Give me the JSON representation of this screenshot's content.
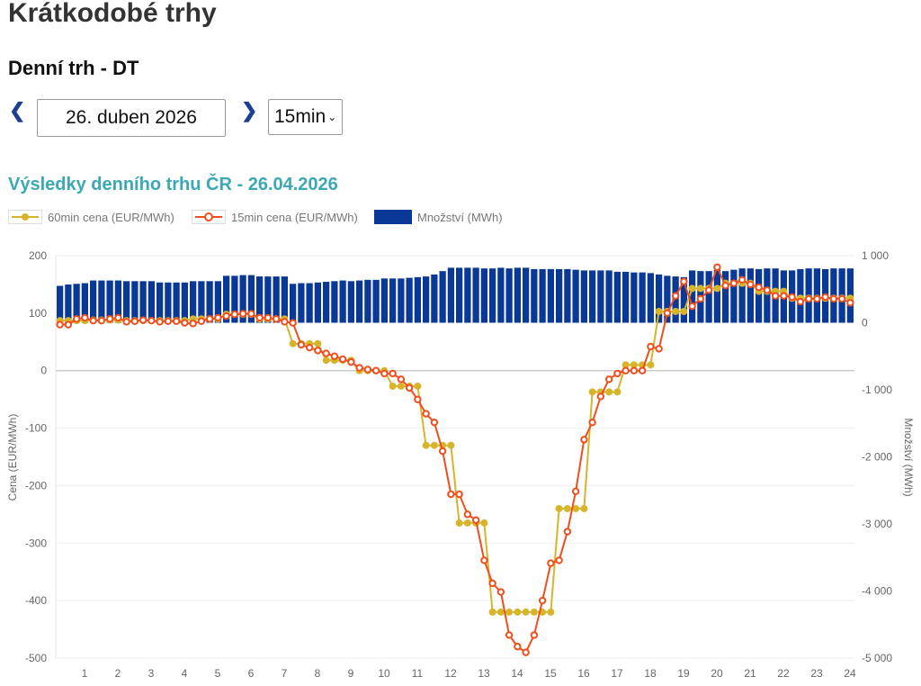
{
  "page_title": "Krátkodobé trhy",
  "section_title": "Denní trh - DT",
  "date_picker": {
    "value": "26. duben 2026",
    "prev_icon": "chevron-left-icon",
    "next_icon": "chevron-right-icon"
  },
  "resolution_select": {
    "value": "15min"
  },
  "colors": {
    "bars": "#0a3896",
    "line60": "#d6b52a",
    "line15": "#f04e1c",
    "title": "#3aa8b5"
  },
  "chart_data": {
    "type": "bar+line",
    "title": "Výsledky denního trhu ČR - 26.04.2026",
    "legend": [
      "60min cena (EUR/MWh)",
      "15min cena (EUR/MWh)",
      "Množství (MWh)"
    ],
    "legend_position": "top-left",
    "ylabel": "Cena (EUR/MWh)",
    "y2label": "Množství (MWh)",
    "ylim": [
      -500,
      200
    ],
    "y2lim": [
      -5000,
      1000
    ],
    "yticks": [
      "200",
      "100",
      "0",
      "-100",
      "-200",
      "-300",
      "-400",
      "-500"
    ],
    "y2ticks": [
      "1 000",
      "0",
      "-1 000",
      "-2 000",
      "-3 000",
      "-4 000",
      "-5 000"
    ],
    "xticks": [
      "1",
      "2",
      "3",
      "4",
      "5",
      "6",
      "7",
      "8",
      "9",
      "10",
      "11",
      "12",
      "13",
      "14",
      "15",
      "16",
      "17",
      "18",
      "19",
      "20",
      "21",
      "22",
      "23",
      "24"
    ],
    "price_60min_hourly": [
      87,
      88,
      87,
      87,
      90,
      98,
      90,
      47,
      18,
      0,
      -27,
      -130,
      -265,
      -420,
      -420,
      -240,
      -37,
      10,
      103,
      143,
      152,
      138,
      126,
      126
    ],
    "price_15min": [
      80,
      80,
      90,
      92,
      87,
      87,
      90,
      92,
      85,
      86,
      88,
      87,
      85,
      86,
      86,
      83,
      82,
      86,
      90,
      92,
      95,
      98,
      99,
      99,
      92,
      92,
      90,
      85,
      83,
      45,
      40,
      35,
      30,
      25,
      20,
      15,
      5,
      2,
      0,
      -5,
      -5,
      -15,
      -30,
      -50,
      -75,
      -90,
      -140,
      -215,
      -215,
      -250,
      -260,
      -330,
      -370,
      -385,
      -460,
      -480,
      -490,
      -460,
      -400,
      -335,
      -330,
      -280,
      -210,
      -120,
      -90,
      -45,
      -15,
      -5,
      0,
      0,
      0,
      42,
      38,
      100,
      130,
      155,
      112,
      125,
      140,
      180,
      148,
      152,
      158,
      150,
      145,
      140,
      130,
      130,
      128,
      120,
      125,
      125,
      128,
      125,
      125,
      118
    ],
    "volume_mwh": [
      550,
      570,
      580,
      590,
      630,
      630,
      630,
      630,
      620,
      620,
      620,
      620,
      600,
      600,
      600,
      600,
      620,
      620,
      620,
      620,
      700,
      700,
      710,
      710,
      690,
      690,
      690,
      690,
      580,
      590,
      590,
      600,
      610,
      620,
      630,
      620,
      630,
      640,
      640,
      660,
      660,
      660,
      670,
      680,
      690,
      720,
      770,
      820,
      820,
      820,
      820,
      810,
      810,
      820,
      810,
      820,
      820,
      800,
      800,
      800,
      800,
      800,
      790,
      780,
      780,
      780,
      780,
      760,
      760,
      750,
      750,
      740,
      720,
      700,
      690,
      680,
      780,
      770,
      770,
      790,
      770,
      790,
      810,
      810,
      800,
      810,
      810,
      780,
      780,
      800,
      810,
      810,
      800,
      810,
      810,
      810
    ]
  }
}
